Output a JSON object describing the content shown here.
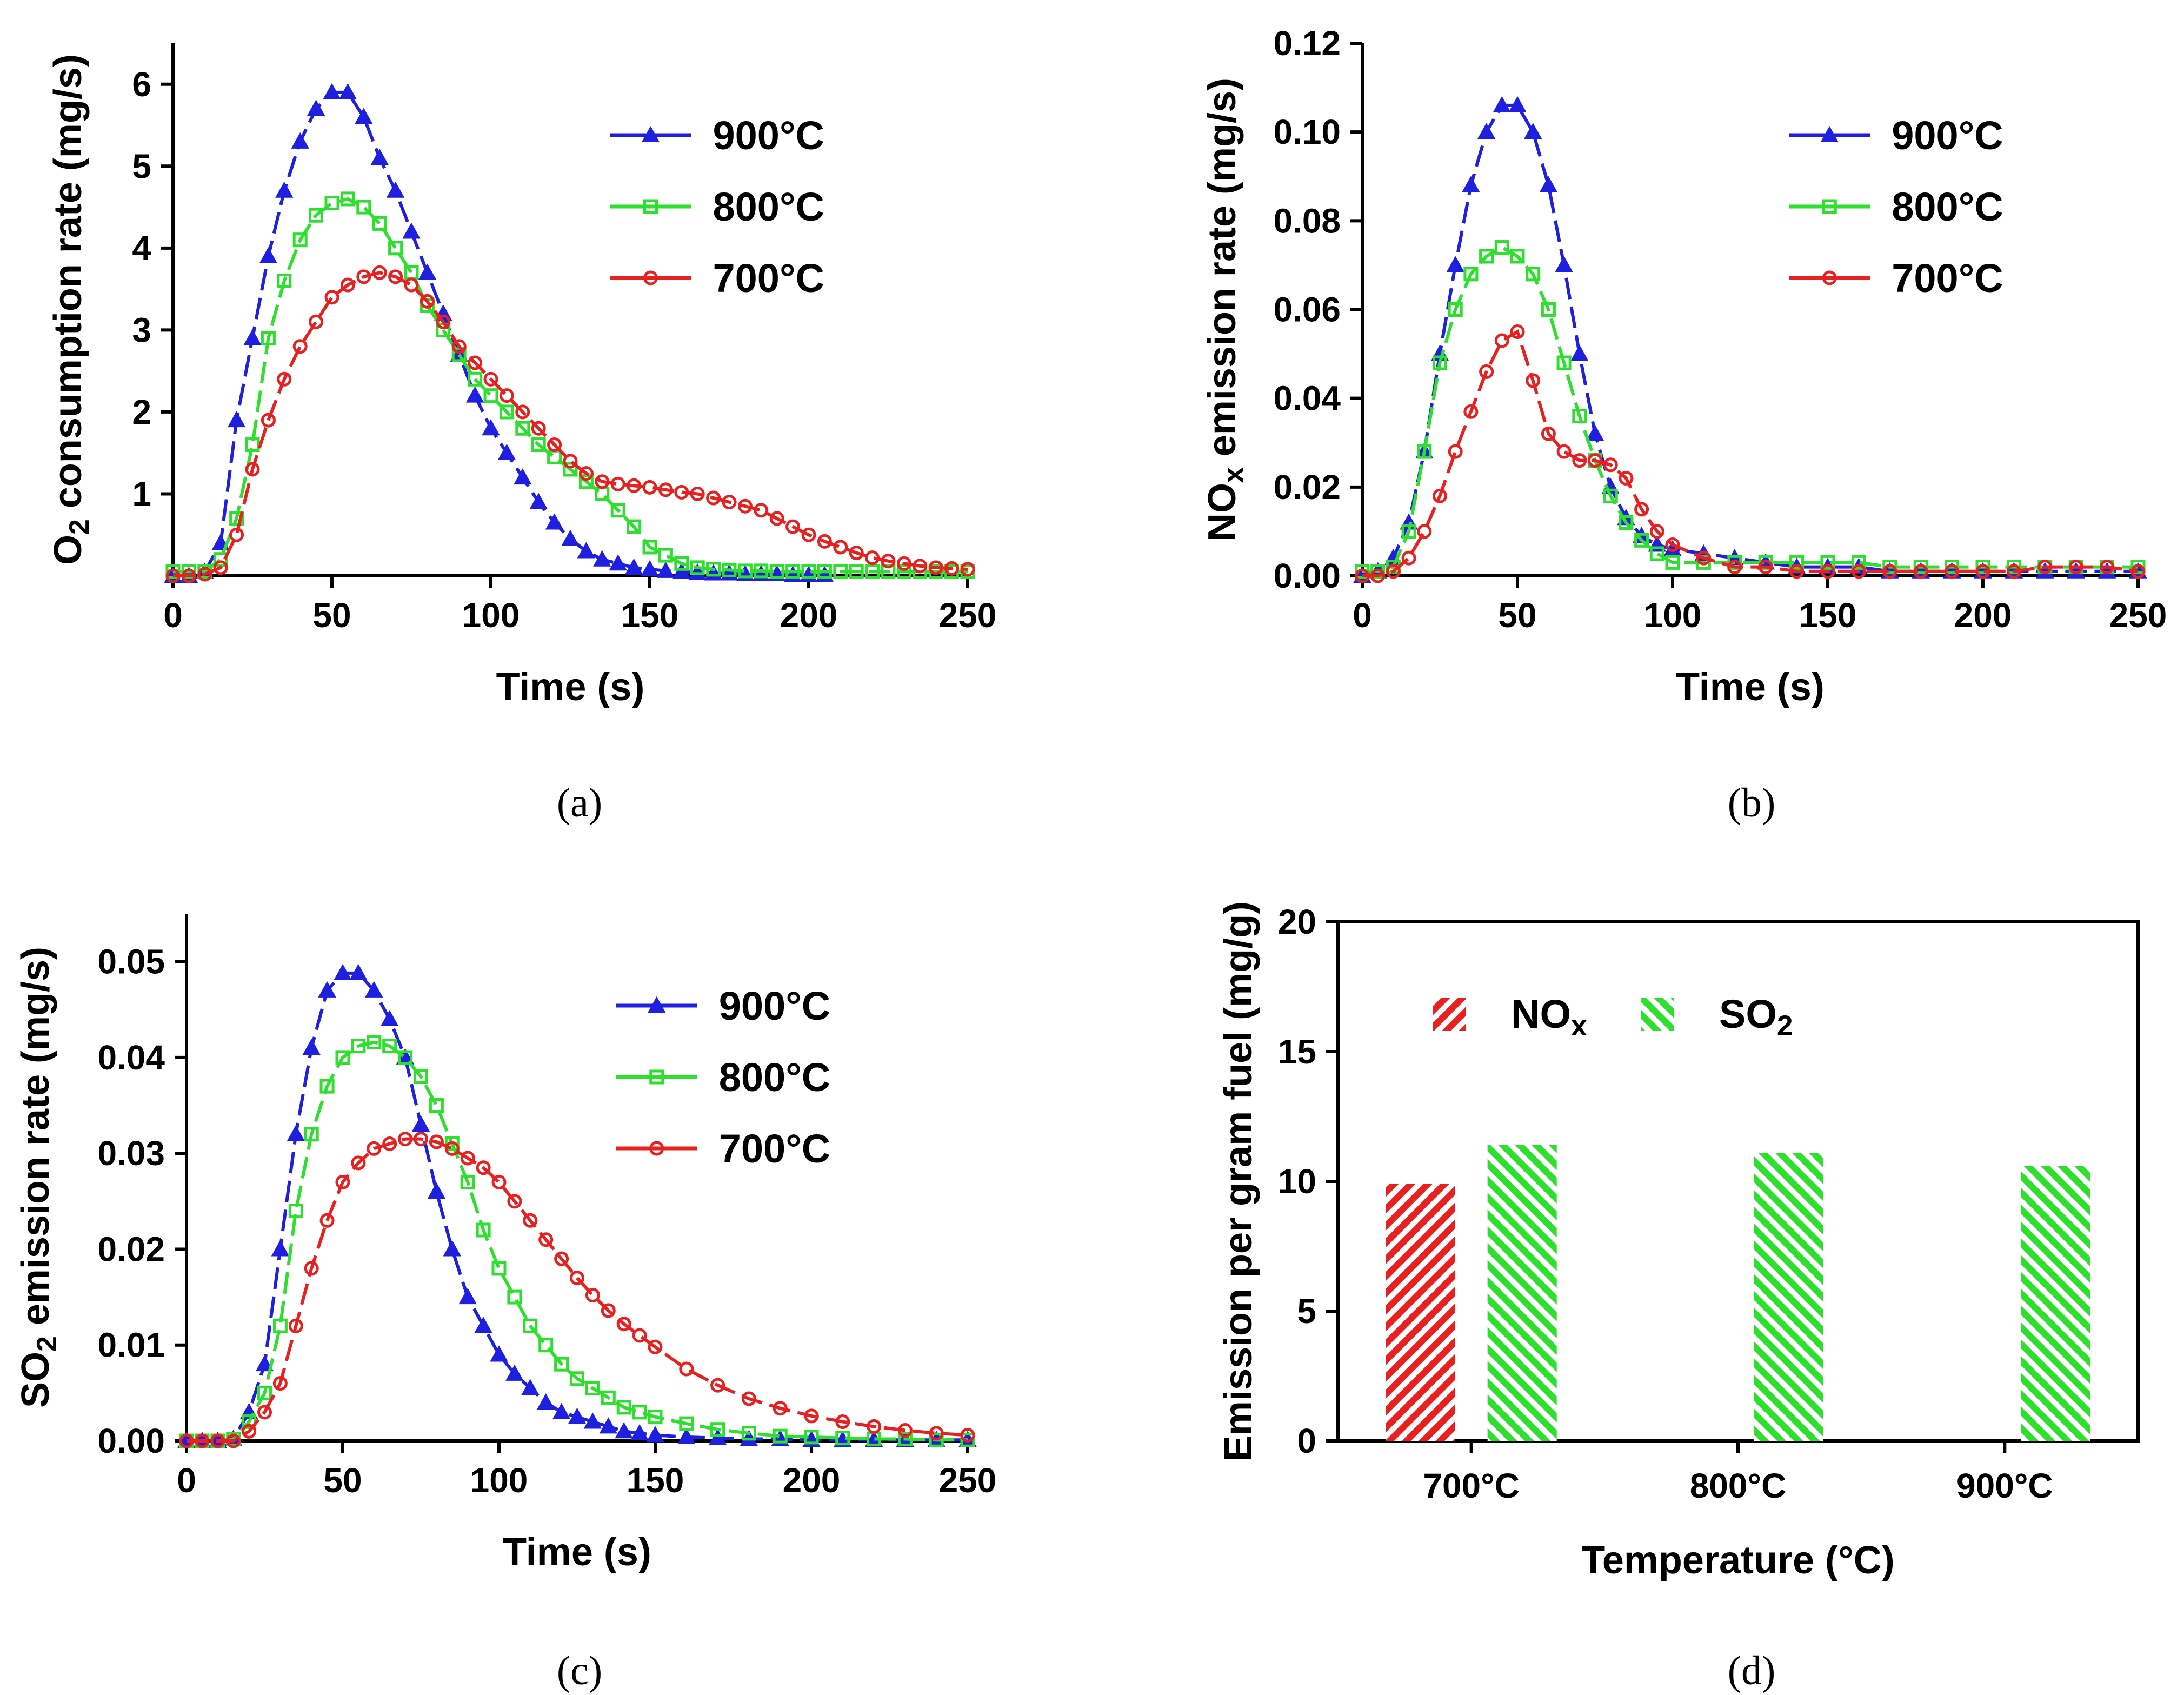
{
  "chart_data": [
    {
      "type": "line",
      "panel": "a",
      "caption": "(a)",
      "ylabel_parts": [
        "O",
        "2",
        " consumption rate (mg/s)"
      ],
      "xlabel": "Time (s)",
      "xlim": [
        0,
        250
      ],
      "ylim": [
        0,
        6.5
      ],
      "xticks": [
        "0",
        "50",
        "100",
        "150",
        "200",
        "250"
      ],
      "yticks": [
        "1",
        "2",
        "3",
        "4",
        "5",
        "6"
      ],
      "legend_position": "top-right",
      "series": [
        {
          "name": "900°C",
          "color": "#1f1fe0",
          "marker": "triangle",
          "x": [
            0,
            5,
            10,
            15,
            20,
            25,
            30,
            35,
            40,
            45,
            50,
            55,
            60,
            65,
            70,
            75,
            80,
            85,
            90,
            95,
            100,
            105,
            110,
            115,
            120,
            125,
            130,
            135,
            140,
            145,
            150,
            155,
            160,
            165,
            170,
            175,
            180,
            185,
            190,
            195,
            200,
            205
          ],
          "y": [
            0,
            0,
            0.05,
            0.4,
            1.9,
            2.9,
            3.9,
            4.7,
            5.3,
            5.7,
            5.9,
            5.9,
            5.6,
            5.1,
            4.7,
            4.2,
            3.7,
            3.2,
            2.7,
            2.2,
            1.8,
            1.5,
            1.2,
            0.9,
            0.65,
            0.45,
            0.3,
            0.2,
            0.15,
            0.1,
            0.08,
            0.06,
            0.05,
            0.04,
            0.03,
            0.03,
            0.02,
            0.02,
            0.02,
            0.01,
            0.01,
            0.01
          ]
        },
        {
          "name": "800°C",
          "color": "#2ee02e",
          "marker": "square",
          "x": [
            0,
            5,
            10,
            15,
            20,
            25,
            30,
            35,
            40,
            45,
            50,
            55,
            60,
            65,
            70,
            75,
            80,
            85,
            90,
            95,
            100,
            105,
            110,
            115,
            120,
            125,
            130,
            135,
            140,
            145,
            150,
            155,
            160,
            165,
            170,
            175,
            180,
            185,
            190,
            195,
            200,
            205,
            210,
            215,
            220,
            225,
            230,
            235,
            240,
            245,
            250
          ],
          "y": [
            0.05,
            0.05,
            0.05,
            0.2,
            0.7,
            1.6,
            2.9,
            3.6,
            4.1,
            4.4,
            4.55,
            4.6,
            4.5,
            4.3,
            4.0,
            3.7,
            3.3,
            3.0,
            2.7,
            2.4,
            2.2,
            2.0,
            1.8,
            1.6,
            1.45,
            1.3,
            1.15,
            1.0,
            0.8,
            0.6,
            0.35,
            0.25,
            0.15,
            0.1,
            0.08,
            0.07,
            0.06,
            0.06,
            0.05,
            0.05,
            0.05,
            0.05,
            0.05,
            0.05,
            0.05,
            0.05,
            0.05,
            0.05,
            0.05,
            0.05,
            0.05
          ]
        },
        {
          "name": "700°C",
          "color": "#e82020",
          "marker": "circle",
          "x": [
            0,
            5,
            10,
            15,
            20,
            25,
            30,
            35,
            40,
            45,
            50,
            55,
            60,
            65,
            70,
            75,
            80,
            85,
            90,
            95,
            100,
            105,
            110,
            115,
            120,
            125,
            130,
            135,
            140,
            145,
            150,
            155,
            160,
            165,
            170,
            175,
            180,
            185,
            190,
            195,
            200,
            205,
            210,
            215,
            220,
            225,
            230,
            235,
            240,
            245,
            250
          ],
          "y": [
            0,
            0,
            0.02,
            0.1,
            0.5,
            1.3,
            1.9,
            2.4,
            2.8,
            3.1,
            3.4,
            3.55,
            3.65,
            3.7,
            3.65,
            3.55,
            3.35,
            3.1,
            2.8,
            2.6,
            2.4,
            2.2,
            2.0,
            1.8,
            1.6,
            1.4,
            1.25,
            1.15,
            1.12,
            1.1,
            1.08,
            1.05,
            1.02,
            1.0,
            0.95,
            0.9,
            0.85,
            0.8,
            0.7,
            0.6,
            0.5,
            0.42,
            0.35,
            0.28,
            0.22,
            0.18,
            0.15,
            0.12,
            0.1,
            0.09,
            0.08
          ]
        }
      ]
    },
    {
      "type": "line",
      "panel": "b",
      "caption": "(b)",
      "ylabel_parts": [
        "NO",
        "x",
        " emission rate (mg/s)"
      ],
      "xlabel": "Time (s)",
      "xlim": [
        0,
        250
      ],
      "ylim": [
        0,
        0.12
      ],
      "xticks": [
        "0",
        "50",
        "100",
        "150",
        "200",
        "250"
      ],
      "yticks": [
        "0.00",
        "0.02",
        "0.04",
        "0.06",
        "0.08",
        "0.10",
        "0.12"
      ],
      "legend_position": "top-right",
      "series": [
        {
          "name": "900°C",
          "color": "#1f1fe0",
          "marker": "triangle",
          "x": [
            0,
            5,
            10,
            15,
            20,
            25,
            30,
            35,
            40,
            45,
            50,
            55,
            60,
            65,
            70,
            75,
            80,
            85,
            90,
            95,
            100,
            110,
            120,
            130,
            140,
            150,
            160,
            170,
            180,
            190,
            200,
            210,
            220,
            230,
            240,
            250
          ],
          "y": [
            0,
            0.001,
            0.004,
            0.012,
            0.028,
            0.05,
            0.07,
            0.088,
            0.1,
            0.106,
            0.106,
            0.1,
            0.088,
            0.07,
            0.05,
            0.032,
            0.02,
            0.013,
            0.009,
            0.007,
            0.006,
            0.005,
            0.004,
            0.003,
            0.002,
            0.002,
            0.002,
            0.001,
            0.001,
            0.001,
            0.001,
            0.001,
            0.001,
            0.001,
            0.001,
            0.001
          ]
        },
        {
          "name": "800°C",
          "color": "#2ee02e",
          "marker": "square",
          "x": [
            0,
            5,
            10,
            15,
            20,
            25,
            30,
            35,
            40,
            45,
            50,
            55,
            60,
            65,
            70,
            75,
            80,
            85,
            90,
            95,
            100,
            110,
            120,
            130,
            140,
            150,
            160,
            170,
            180,
            190,
            200,
            210,
            220,
            230,
            240,
            250
          ],
          "y": [
            0.001,
            0.001,
            0.002,
            0.01,
            0.028,
            0.048,
            0.06,
            0.068,
            0.072,
            0.074,
            0.072,
            0.068,
            0.06,
            0.048,
            0.036,
            0.026,
            0.018,
            0.012,
            0.008,
            0.005,
            0.003,
            0.003,
            0.003,
            0.003,
            0.003,
            0.003,
            0.003,
            0.002,
            0.002,
            0.002,
            0.002,
            0.002,
            0.002,
            0.002,
            0.002,
            0.002
          ]
        },
        {
          "name": "700°C",
          "color": "#e82020",
          "marker": "circle",
          "x": [
            0,
            5,
            10,
            15,
            20,
            25,
            30,
            35,
            40,
            45,
            50,
            55,
            60,
            65,
            70,
            75,
            80,
            85,
            90,
            95,
            100,
            110,
            120,
            130,
            140,
            150,
            160,
            170,
            180,
            190,
            200,
            210,
            220,
            230,
            240,
            250
          ],
          "y": [
            0,
            0,
            0.001,
            0.004,
            0.01,
            0.018,
            0.028,
            0.037,
            0.046,
            0.053,
            0.055,
            0.044,
            0.032,
            0.028,
            0.026,
            0.026,
            0.025,
            0.022,
            0.015,
            0.01,
            0.007,
            0.004,
            0.002,
            0.002,
            0.001,
            0.001,
            0.001,
            0.001,
            0.001,
            0.001,
            0.001,
            0.001,
            0.002,
            0.002,
            0.002,
            0.001
          ]
        }
      ]
    },
    {
      "type": "line",
      "panel": "c",
      "caption": "(c)",
      "ylabel_parts": [
        "SO",
        "2",
        " emission rate (mg/s)"
      ],
      "xlabel": "Time (s)",
      "xlim": [
        0,
        250
      ],
      "ylim": [
        0,
        0.055
      ],
      "xticks": [
        "0",
        "50",
        "100",
        "150",
        "200",
        "250"
      ],
      "yticks": [
        "0.00",
        "0.01",
        "0.02",
        "0.03",
        "0.04",
        "0.05"
      ],
      "legend_position": "top-right",
      "series": [
        {
          "name": "900°C",
          "color": "#1f1fe0",
          "marker": "triangle",
          "x": [
            0,
            5,
            10,
            15,
            20,
            25,
            30,
            35,
            40,
            45,
            50,
            55,
            60,
            65,
            70,
            75,
            80,
            85,
            90,
            95,
            100,
            105,
            110,
            115,
            120,
            125,
            130,
            135,
            140,
            145,
            150,
            160,
            170,
            180,
            190,
            200,
            210,
            220,
            230,
            240,
            250
          ],
          "y": [
            0,
            0,
            0,
            0.0002,
            0.003,
            0.008,
            0.02,
            0.032,
            0.041,
            0.047,
            0.0488,
            0.0488,
            0.047,
            0.044,
            0.04,
            0.033,
            0.026,
            0.02,
            0.015,
            0.012,
            0.009,
            0.007,
            0.0055,
            0.004,
            0.003,
            0.0025,
            0.002,
            0.0015,
            0.001,
            0.0008,
            0.0006,
            0.0004,
            0.0003,
            0.0002,
            0.0002,
            0.0001,
            0.0001,
            0.0001,
            0.0001,
            0.0001,
            0.0001
          ]
        },
        {
          "name": "800°C",
          "color": "#2ee02e",
          "marker": "square",
          "x": [
            0,
            5,
            10,
            15,
            20,
            25,
            30,
            35,
            40,
            45,
            50,
            55,
            60,
            65,
            70,
            75,
            80,
            85,
            90,
            95,
            100,
            105,
            110,
            115,
            120,
            125,
            130,
            135,
            140,
            145,
            150,
            160,
            170,
            180,
            190,
            200,
            210,
            220,
            230,
            240,
            250
          ],
          "y": [
            0,
            0,
            0,
            0.0002,
            0.002,
            0.005,
            0.012,
            0.024,
            0.032,
            0.037,
            0.04,
            0.0412,
            0.0416,
            0.0412,
            0.04,
            0.038,
            0.035,
            0.031,
            0.027,
            0.022,
            0.018,
            0.015,
            0.012,
            0.01,
            0.008,
            0.0065,
            0.0055,
            0.0045,
            0.0035,
            0.003,
            0.0025,
            0.0018,
            0.0012,
            0.0008,
            0.0005,
            0.0004,
            0.0003,
            0.0002,
            0.0002,
            0.0001,
            0.0001
          ]
        },
        {
          "name": "700°C",
          "color": "#e82020",
          "marker": "circle",
          "x": [
            0,
            5,
            10,
            15,
            20,
            25,
            30,
            35,
            40,
            45,
            50,
            55,
            60,
            65,
            70,
            75,
            80,
            85,
            90,
            95,
            100,
            105,
            110,
            115,
            120,
            125,
            130,
            135,
            140,
            145,
            150,
            160,
            170,
            180,
            190,
            200,
            210,
            220,
            230,
            240,
            250
          ],
          "y": [
            0,
            0,
            0,
            0,
            0.001,
            0.003,
            0.006,
            0.012,
            0.018,
            0.023,
            0.027,
            0.029,
            0.0305,
            0.031,
            0.0315,
            0.0315,
            0.0312,
            0.0305,
            0.0295,
            0.0285,
            0.027,
            0.025,
            0.023,
            0.021,
            0.019,
            0.017,
            0.0152,
            0.0136,
            0.0122,
            0.011,
            0.0098,
            0.0075,
            0.0058,
            0.0044,
            0.0034,
            0.0026,
            0.002,
            0.0015,
            0.0011,
            0.0008,
            0.0006
          ]
        }
      ]
    },
    {
      "type": "bar",
      "panel": "d",
      "caption": "(d)",
      "ylabel": "Emission per gram fuel (mg/g)",
      "xlabel": "Temperature (°C)",
      "categories": [
        "700°C",
        "800°C",
        "900°C"
      ],
      "ylim": [
        0,
        20
      ],
      "yticks": [
        "0",
        "5",
        "10",
        "15",
        "20"
      ],
      "legend_position": "top-left",
      "series": [
        {
          "name_parts": [
            "NO",
            "x"
          ],
          "color": "#e82020",
          "values": [
            9.9,
            0,
            0
          ]
        },
        {
          "name_parts": [
            "SO",
            "2"
          ],
          "color": "#2ee02e",
          "values": [
            11.4,
            11.1,
            10.6
          ]
        }
      ]
    }
  ]
}
